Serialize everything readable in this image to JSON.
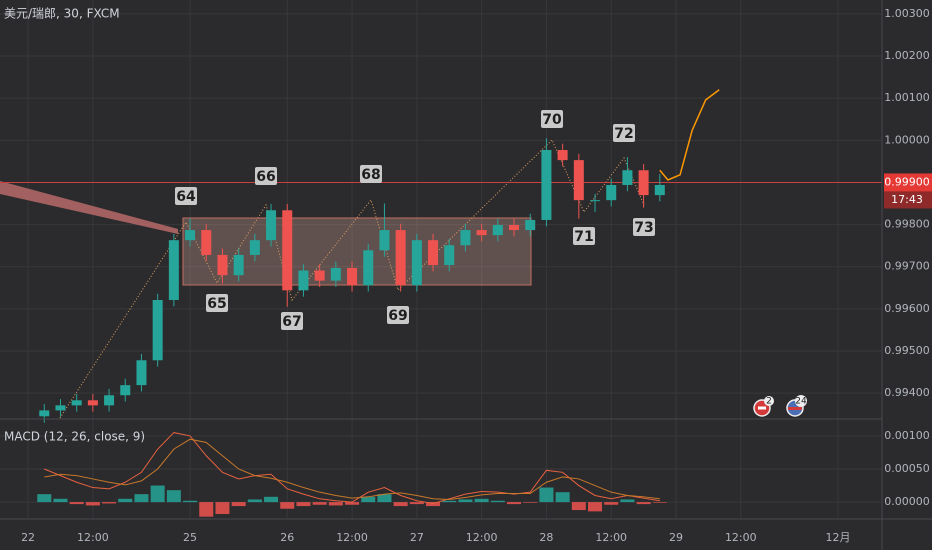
{
  "chart_data": [
    {
      "type": "candlestick",
      "title": "美元/瑞郎, 30, FXCM",
      "x": [
        6,
        12,
        18,
        24,
        30,
        36,
        42,
        48,
        54,
        60,
        66,
        72,
        78,
        84,
        90,
        96,
        102,
        108,
        114,
        120,
        126,
        132,
        138,
        144,
        150,
        156,
        162,
        168,
        174,
        180,
        186,
        192,
        198,
        204,
        210,
        216,
        222,
        228,
        234
      ],
      "open": [
        0.99345,
        0.99359,
        0.99371,
        0.99383,
        0.99371,
        0.99395,
        0.99419,
        0.99478,
        0.99621,
        0.99763,
        0.99787,
        0.99728,
        0.9968,
        0.99728,
        0.99763,
        0.99834,
        0.99644,
        0.99691,
        0.99667,
        0.99697,
        0.99656,
        0.99739,
        0.99787,
        0.99656,
        0.99763,
        0.99704,
        0.99751,
        0.99787,
        0.99775,
        0.99799,
        0.99787,
        0.99811,
        0.99977,
        0.99953,
        0.99858,
        0.99858,
        0.99894,
        0.99929,
        0.9987
      ],
      "high": [
        0.99374,
        0.99386,
        0.99398,
        0.99398,
        0.9941,
        0.99434,
        0.99493,
        0.99636,
        0.99778,
        0.99815,
        0.99802,
        0.99743,
        0.99743,
        0.99778,
        0.99849,
        0.99849,
        0.99706,
        0.99706,
        0.99712,
        0.99712,
        0.99754,
        0.9985,
        0.99802,
        0.99778,
        0.99778,
        0.99766,
        0.99802,
        0.99802,
        0.99814,
        0.99814,
        0.99826,
        1.00005,
        0.99992,
        0.99968,
        0.99873,
        0.99909,
        0.9996,
        0.99944,
        0.9992
      ],
      "low": [
        0.9933,
        0.99344,
        0.99356,
        0.99356,
        0.99356,
        0.9938,
        0.99404,
        0.99463,
        0.99606,
        0.99748,
        0.99713,
        0.9966,
        0.99665,
        0.99713,
        0.99748,
        0.99605,
        0.99629,
        0.99652,
        0.99652,
        0.99641,
        0.99641,
        0.99724,
        0.99641,
        0.99641,
        0.99689,
        0.99689,
        0.99736,
        0.9976,
        0.9976,
        0.99772,
        0.99772,
        0.99796,
        0.99938,
        0.99814,
        0.9983,
        0.99843,
        0.99879,
        0.9984,
        0.99855
      ],
      "close": [
        0.99359,
        0.99371,
        0.99383,
        0.99371,
        0.99395,
        0.99419,
        0.99478,
        0.99621,
        0.99763,
        0.99787,
        0.99728,
        0.9968,
        0.99728,
        0.99763,
        0.99834,
        0.99644,
        0.99691,
        0.99667,
        0.99697,
        0.99656,
        0.99739,
        0.99787,
        0.99656,
        0.99763,
        0.99704,
        0.99751,
        0.99787,
        0.99775,
        0.99799,
        0.99787,
        0.99811,
        0.99977,
        0.99953,
        0.99858,
        0.99858,
        0.99894,
        0.99929,
        0.9987,
        0.99894
      ],
      "up_color": "#26a69a",
      "down_color": "#ef5350",
      "forecast": {
        "x": [
          234,
          237,
          241.5,
          246,
          251,
          256
        ],
        "values": [
          0.99929,
          0.99906,
          0.99918,
          1.00024,
          1.00096,
          1.0012
        ],
        "color": "#ff9800"
      },
      "xlim": [
        -10.4,
        316.3
      ],
      "xticks": [
        {
          "value": 0,
          "label": "22"
        },
        {
          "value": 24,
          "label": "12:00"
        },
        {
          "value": 60,
          "label": "25"
        },
        {
          "value": 96,
          "label": "26"
        },
        {
          "value": 120,
          "label": "12:00"
        },
        {
          "value": 144,
          "label": "27"
        },
        {
          "value": 168,
          "label": "12:00"
        },
        {
          "value": 192,
          "label": "28"
        },
        {
          "value": 216,
          "label": "12:00"
        },
        {
          "value": 240,
          "label": "29"
        },
        {
          "value": 264,
          "label": "12:00"
        },
        {
          "value": 300,
          "label": "12月"
        }
      ],
      "ylim": [
        0.99341,
        1.00333
      ],
      "yticks": [
        {
          "value": 0.994,
          "label": "0.99400"
        },
        {
          "value": 0.995,
          "label": "0.99500"
        },
        {
          "value": 0.996,
          "label": "0.99600"
        },
        {
          "value": 0.997,
          "label": "0.99700"
        },
        {
          "value": 0.998,
          "label": "0.99800"
        },
        {
          "value": 1.0,
          "label": "1.00000"
        },
        {
          "value": 1.001,
          "label": "1.00100"
        },
        {
          "value": 1.002,
          "label": "1.00200"
        },
        {
          "value": 1.003,
          "label": "1.00300"
        }
      ],
      "grid": true,
      "current_price": {
        "value": 0.999,
        "label": "0.99900"
      },
      "countdown": "17:43",
      "annotations": [
        "64",
        "65",
        "66",
        "67",
        "68",
        "69",
        "70",
        "71",
        "72",
        "73"
      ],
      "badges": [
        "2",
        "24"
      ]
    },
    {
      "type": "macd",
      "title": "MACD (12, 26, close, 9)",
      "x": [
        6,
        12,
        18,
        24,
        30,
        36,
        42,
        48,
        54,
        60,
        66,
        72,
        78,
        84,
        90,
        96,
        102,
        108,
        114,
        120,
        126,
        132,
        138,
        144,
        150,
        156,
        162,
        168,
        174,
        180,
        186,
        192,
        198,
        204,
        210,
        216,
        222,
        228,
        234
      ],
      "histogram": [
        0.00012,
        5e-05,
        -3e-05,
        -5e-05,
        -2e-05,
        5e-05,
        0.00012,
        0.00025,
        0.00018,
        2e-05,
        -0.00022,
        -0.00018,
        -6e-05,
        4e-05,
        8e-05,
        -0.0001,
        -6e-05,
        -4e-05,
        -5e-05,
        -4e-05,
        8e-05,
        0.00012,
        -6e-05,
        -3e-05,
        -6e-05,
        2e-05,
        4e-05,
        5e-05,
        2e-05,
        -3e-05,
        -1e-05,
        0.00022,
        0.00015,
        -0.00012,
        -0.00014,
        -4e-05,
        4e-05,
        -3e-05,
        -1e-05
      ],
      "macd": [
        0.0005,
        0.0004,
        0.0003,
        0.00022,
        0.0002,
        0.0003,
        0.00045,
        0.0008,
        0.00105,
        0.001,
        0.0007,
        0.00045,
        0.00035,
        0.0004,
        0.00042,
        0.0002,
        0.00012,
        5e-05,
        2e-05,
        0.0,
        0.00015,
        0.00022,
        0.0001,
        2e-05,
        -2e-05,
        5e-05,
        0.00012,
        0.00016,
        0.00015,
        0.00012,
        0.00015,
        0.00048,
        0.00045,
        0.00025,
        0.0001,
        5e-05,
        0.0001,
        6e-05,
        2e-05
      ],
      "signal": [
        0.00038,
        0.00042,
        0.0004,
        0.00035,
        0.0003,
        0.00026,
        0.00032,
        0.0005,
        0.0008,
        0.00095,
        0.0009,
        0.0007,
        0.0005,
        0.0004,
        0.00036,
        0.0003,
        0.00022,
        0.00015,
        0.0001,
        6e-05,
        8e-05,
        0.00012,
        0.00014,
        0.0001,
        5e-05,
        4e-05,
        7e-05,
        0.00011,
        0.00013,
        0.00013,
        0.00013,
        0.0003,
        0.00038,
        0.00035,
        0.00025,
        0.00015,
        0.0001,
        8e-05,
        5e-05
      ],
      "histogram_up_color": "#26a69a",
      "histogram_down_color": "#ef5350",
      "macd_color": "#e8623f",
      "signal_color": "#c8782a",
      "xlim": [
        -10.4,
        316.3
      ],
      "ylim": [
        -0.00024,
        0.00124
      ],
      "yticks": [
        {
          "value": 0,
          "label": "0.00000"
        },
        {
          "value": 0.0005,
          "label": "0.00050"
        },
        {
          "value": 0.001,
          "label": "0.00100"
        }
      ]
    }
  ]
}
